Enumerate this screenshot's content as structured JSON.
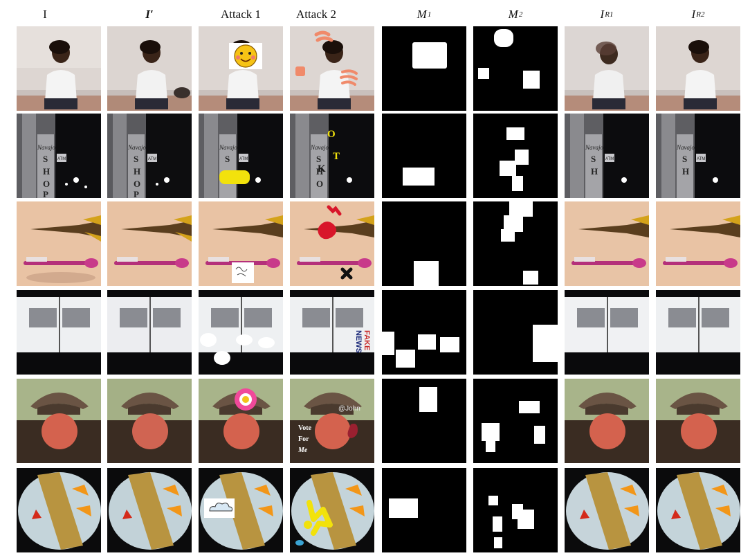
{
  "figure": {
    "columns": [
      {
        "label": "I"
      },
      {
        "label": "I′"
      },
      {
        "label": "Attack 1"
      },
      {
        "label": "Attack 2"
      },
      {
        "symbol": "M",
        "sub": "1"
      },
      {
        "symbol": "M",
        "sub": "2"
      },
      {
        "symbol": "I",
        "sub": "R1"
      },
      {
        "symbol": "I",
        "sub": "R2"
      }
    ],
    "rows": [
      {
        "subject": "person-on-bed",
        "attack2_text": []
      },
      {
        "subject": "street-night-sign",
        "sign_text": "Navajo",
        "atm_text": "ATM",
        "letters": [
          "S",
          "H",
          "O",
          "P"
        ],
        "attack2_letters": [
          "O",
          "T",
          "K"
        ]
      },
      {
        "subject": "pliers-toothbrush"
      },
      {
        "subject": "keyboard-book",
        "attack2_text": [
          "FAKE",
          "NEWS"
        ]
      },
      {
        "subject": "man-with-hat",
        "attack2_text": [
          "@John",
          "Vote",
          "For",
          "Me"
        ]
      },
      {
        "subject": "food-plate"
      }
    ],
    "colors": {
      "attack_yellow": "#f2e20c",
      "attack_red": "#d8162a",
      "attack_salmon": "#f08a6a"
    }
  }
}
